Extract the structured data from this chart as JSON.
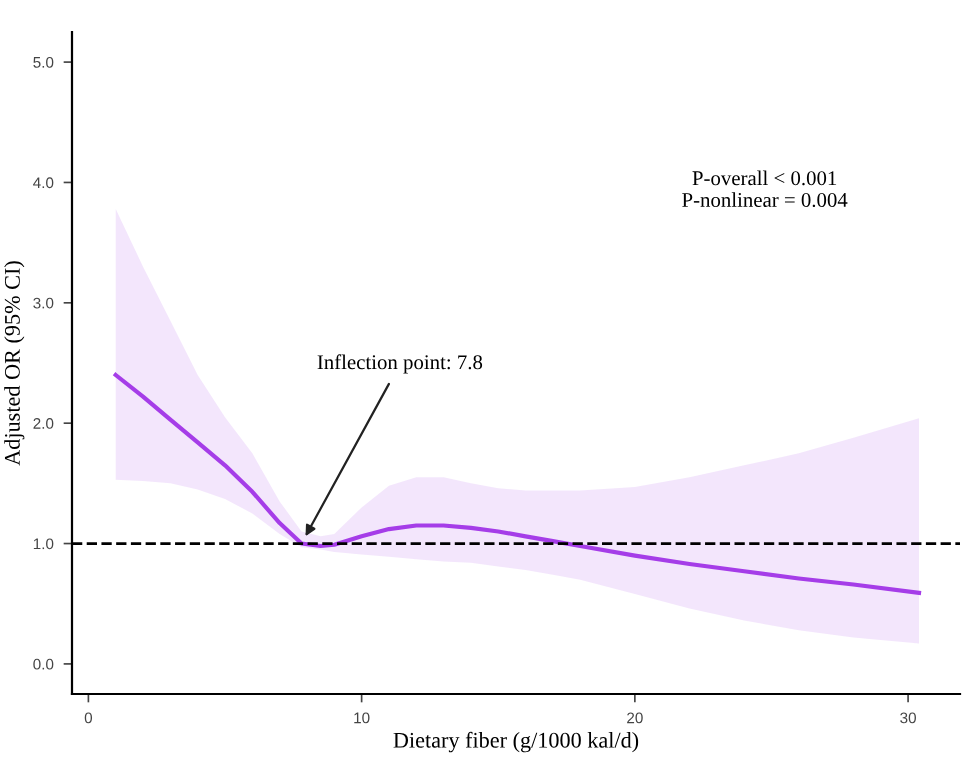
{
  "chart_data": {
    "type": "line",
    "xlabel": "Dietary fiber (g/1000 kal/d)",
    "ylabel": "Adjusted OR (95% CI)",
    "x": [
      1,
      2,
      3,
      4,
      5,
      6,
      7,
      7.8,
      8.5,
      9,
      10,
      11,
      12,
      13,
      14,
      15,
      16,
      17,
      18,
      20,
      22,
      24,
      26,
      28,
      30.4
    ],
    "series": [
      {
        "color": "#a53de8",
        "values": [
          2.4,
          2.22,
          2.03,
          1.84,
          1.65,
          1.43,
          1.17,
          1.0,
          0.98,
          0.99,
          1.06,
          1.12,
          1.15,
          1.15,
          1.13,
          1.1,
          1.06,
          1.02,
          0.98,
          0.9,
          0.83,
          0.77,
          0.71,
          0.66,
          0.59
        ],
        "upper": [
          3.78,
          3.3,
          2.85,
          2.4,
          2.05,
          1.75,
          1.35,
          1.1,
          1.06,
          1.08,
          1.3,
          1.48,
          1.55,
          1.55,
          1.5,
          1.46,
          1.44,
          1.44,
          1.44,
          1.47,
          1.55,
          1.65,
          1.75,
          1.88,
          2.04
        ],
        "lower": [
          1.53,
          1.52,
          1.5,
          1.45,
          1.37,
          1.25,
          1.08,
          0.97,
          0.95,
          0.93,
          0.91,
          0.89,
          0.87,
          0.85,
          0.84,
          0.81,
          0.78,
          0.74,
          0.7,
          0.58,
          0.46,
          0.36,
          0.28,
          0.22,
          0.17
        ]
      }
    ],
    "ref_lines": [
      {
        "axis": "y",
        "value": 1.0,
        "color": "#000000",
        "line_style": "dashed"
      }
    ],
    "annotations": [
      {
        "text": "Inflection point: 7.8",
        "x": 7.8,
        "y": 1.0
      },
      "P-overall < 0.001\nP-nonlinear = 0.004"
    ],
    "xlim": [
      -0.6,
      31.9
    ],
    "xticks": [
      0,
      10,
      20,
      30
    ],
    "ylim": [
      -0.25,
      5.25
    ],
    "yticks": [
      {
        "value": 0,
        "label": "0.0"
      },
      {
        "value": 1,
        "label": "1.0"
      },
      {
        "value": 2,
        "label": "2.0"
      },
      {
        "value": 3,
        "label": "3.0"
      },
      {
        "value": 4,
        "label": "4.0"
      },
      {
        "value": 5,
        "label": "5.0"
      }
    ],
    "grid": false,
    "legend": false,
    "marker": "none",
    "line_style": "solid"
  }
}
